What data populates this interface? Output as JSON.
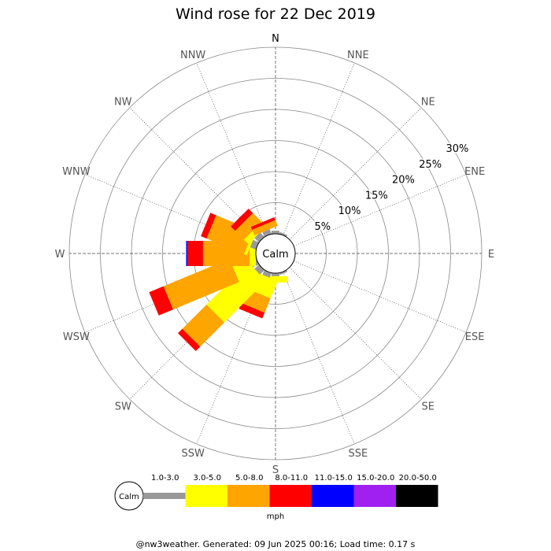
{
  "chart_data": {
    "type": "wind-rose",
    "title": "Wind rose for 22 Dec 2019",
    "directions": [
      "N",
      "NNE",
      "NE",
      "ENE",
      "E",
      "ESE",
      "SE",
      "SSE",
      "S",
      "SSW",
      "SW",
      "WSW",
      "W",
      "WNW",
      "NW",
      "NNW"
    ],
    "ring_labels": [
      "5%",
      "10%",
      "15%",
      "20%",
      "25%",
      "30%"
    ],
    "rmax_percent": 30,
    "calm_label": "Calm",
    "unit": "mph",
    "bins": [
      {
        "label": "1.0-3.0",
        "color": "#999999"
      },
      {
        "label": "3.0-5.0",
        "color": "#ffff00"
      },
      {
        "label": "5.0-8.0",
        "color": "#ffa500"
      },
      {
        "label": "8.0-11.0",
        "color": "#ff0000"
      },
      {
        "label": "11.0-15.0",
        "color": "#0000ff"
      },
      {
        "label": "15.0-20.0",
        "color": "#a020f0"
      },
      {
        "label": "20.0-50.0",
        "color": "#000000"
      }
    ],
    "series": [
      {
        "direction": "N",
        "values": [
          0.5,
          0,
          0,
          0,
          0,
          0,
          0
        ]
      },
      {
        "direction": "NNE",
        "values": [
          0.3,
          0,
          0,
          0,
          0,
          0,
          0
        ]
      },
      {
        "direction": "NE",
        "values": [
          0,
          0,
          0,
          0,
          0,
          0,
          0
        ]
      },
      {
        "direction": "ENE",
        "values": [
          0,
          0,
          0,
          0,
          0,
          0,
          0
        ]
      },
      {
        "direction": "E",
        "values": [
          0,
          0,
          0,
          0,
          0,
          0,
          0
        ]
      },
      {
        "direction": "ESE",
        "values": [
          0,
          0,
          0,
          0,
          0,
          0,
          0
        ]
      },
      {
        "direction": "SE",
        "values": [
          0,
          0,
          0,
          0,
          0,
          0,
          0
        ]
      },
      {
        "direction": "SSE",
        "values": [
          0.3,
          0,
          0,
          0,
          0,
          0,
          0
        ]
      },
      {
        "direction": "S",
        "values": [
          0.5,
          1.0,
          0,
          0,
          0,
          0,
          0
        ]
      },
      {
        "direction": "SSW",
        "values": [
          0.8,
          3.0,
          2.5,
          1.0,
          0,
          0,
          0
        ]
      },
      {
        "direction": "SW",
        "values": [
          1.0,
          9.5,
          5.5,
          1.0,
          0,
          0,
          0
        ]
      },
      {
        "direction": "WSW",
        "values": [
          1.0,
          3.0,
          11.5,
          2.5,
          0,
          0,
          0
        ]
      },
      {
        "direction": "W",
        "values": [
          0,
          1.0,
          7.5,
          2.5,
          0.2,
          0,
          0
        ]
      },
      {
        "direction": "WNW",
        "values": [
          1.0,
          0.5,
          6.5,
          1.0,
          0,
          0,
          0
        ]
      },
      {
        "direction": "NW",
        "values": [
          1.0,
          1.0,
          2.0,
          1.0,
          0,
          0,
          0
        ]
      },
      {
        "direction": "NNW",
        "values": [
          0.8,
          0,
          1.0,
          0.5,
          0,
          0,
          0
        ]
      }
    ]
  },
  "footer": "@nw3weather. Generated: 09 Jun 2025 00:16; Load time: 0.17 s"
}
